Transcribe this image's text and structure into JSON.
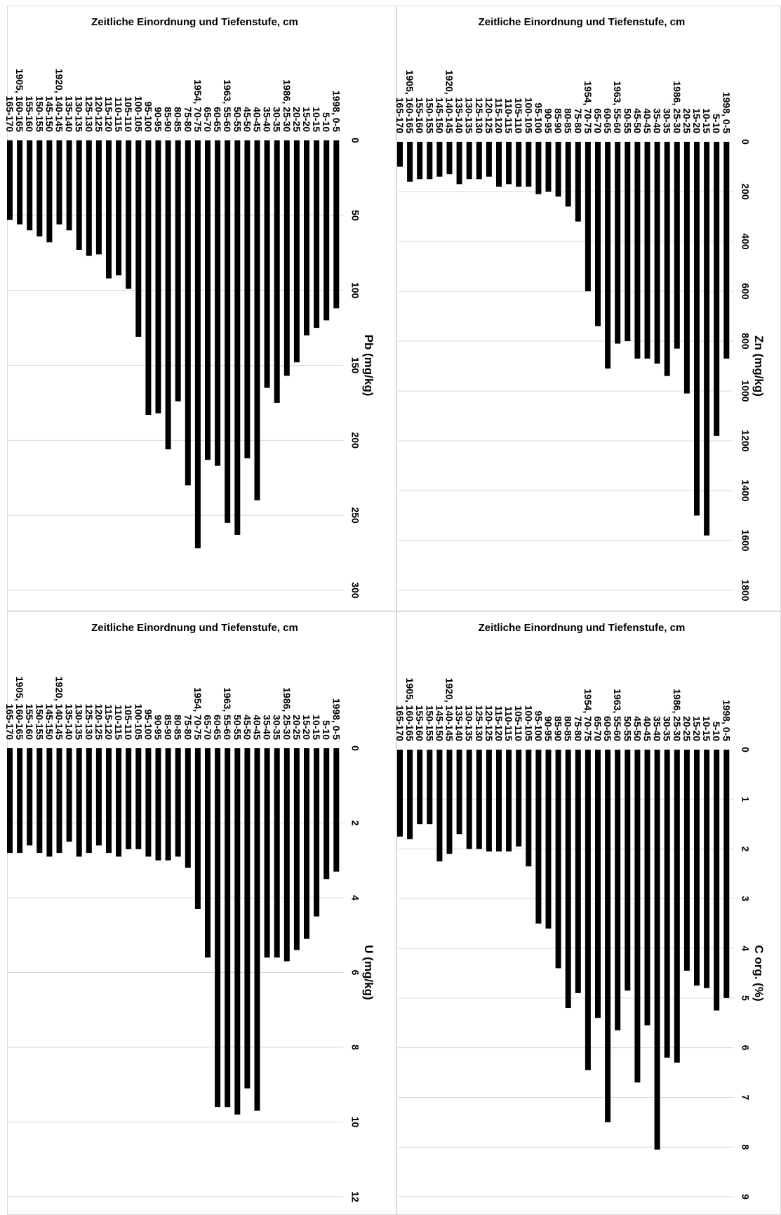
{
  "categories": [
    "1998, 0-5",
    "5-10",
    "10-15",
    "15-20",
    "20-25",
    "1986, 25-30",
    "30-35",
    "35-40",
    "40-45",
    "45-50",
    "50-55",
    "1963, 55-60",
    "60-65",
    "65-70",
    "1954, 70-75",
    "75-80",
    "80-85",
    "85-90",
    "90-95",
    "95-100",
    "100-105",
    "105-110",
    "110-115",
    "115-120",
    "120-125",
    "125-130",
    "130-135",
    "135-140",
    "1920, 140-145",
    "145-150",
    "150-155",
    "155-160",
    "1905, 160-165",
    "165-170"
  ],
  "chart_data": [
    {
      "id": "zn",
      "type": "bar",
      "orientation": "horizontal",
      "title": "Zeitliche Einordnung und Tiefenstufe, cm",
      "ylabel": "Zn (mg/kg)",
      "xlim": [
        0,
        1800
      ],
      "ticks": [
        0,
        200,
        400,
        600,
        800,
        1000,
        1200,
        1400,
        1600,
        1800
      ],
      "grid": true,
      "values": [
        870,
        1180,
        1580,
        1500,
        1010,
        830,
        940,
        890,
        870,
        870,
        800,
        810,
        910,
        740,
        600,
        320,
        260,
        220,
        200,
        210,
        180,
        180,
        170,
        180,
        140,
        150,
        150,
        170,
        130,
        140,
        150,
        150,
        160,
        100
      ]
    },
    {
      "id": "pb",
      "type": "bar",
      "orientation": "horizontal",
      "title": "Zeitliche Einordnung und Tiefenstufe, cm",
      "ylabel": "Pb (mg/kg)",
      "xlim": [
        0,
        300
      ],
      "ticks": [
        0,
        50,
        100,
        150,
        200,
        250,
        300
      ],
      "grid": true,
      "values": [
        112,
        120,
        125,
        130,
        148,
        157,
        175,
        165,
        240,
        212,
        263,
        255,
        217,
        213,
        272,
        230,
        174,
        206,
        182,
        183,
        131,
        99,
        90,
        92,
        76,
        77,
        73,
        60,
        56,
        68,
        64,
        60,
        56,
        53
      ]
    },
    {
      "id": "corg",
      "type": "bar",
      "orientation": "horizontal",
      "title": "Zeitliche Einordnung und Tiefenstufe, cm",
      "ylabel": "C org. (%)",
      "xlim": [
        0,
        9
      ],
      "ticks": [
        0,
        1,
        2,
        3,
        4,
        5,
        6,
        7,
        8,
        9
      ],
      "grid": true,
      "values": [
        5.0,
        5.25,
        4.8,
        4.75,
        4.45,
        6.3,
        6.2,
        8.05,
        5.55,
        6.7,
        4.85,
        5.65,
        7.5,
        5.4,
        6.45,
        4.9,
        5.2,
        4.4,
        3.6,
        3.5,
        2.35,
        1.95,
        2.05,
        2.05,
        2.05,
        2.0,
        2.0,
        1.7,
        2.1,
        2.25,
        1.5,
        1.5,
        1.8,
        1.75
      ]
    },
    {
      "id": "u",
      "type": "bar",
      "orientation": "horizontal",
      "title": "Zeitliche Einordnung und Tiefenstufe, cm",
      "ylabel": "U (mg/kg)",
      "xlim": [
        0,
        12
      ],
      "ticks": [
        0,
        2,
        4,
        6,
        8,
        10,
        12
      ],
      "grid": true,
      "values": [
        3.3,
        3.5,
        4.5,
        5.1,
        5.4,
        5.7,
        5.6,
        5.6,
        9.7,
        9.1,
        9.8,
        9.6,
        9.6,
        5.6,
        4.3,
        3.2,
        2.9,
        3.0,
        3.0,
        2.9,
        2.7,
        2.7,
        2.9,
        2.8,
        2.6,
        2.8,
        2.9,
        2.5,
        2.8,
        2.9,
        2.8,
        2.6,
        2.8,
        2.8
      ]
    }
  ]
}
